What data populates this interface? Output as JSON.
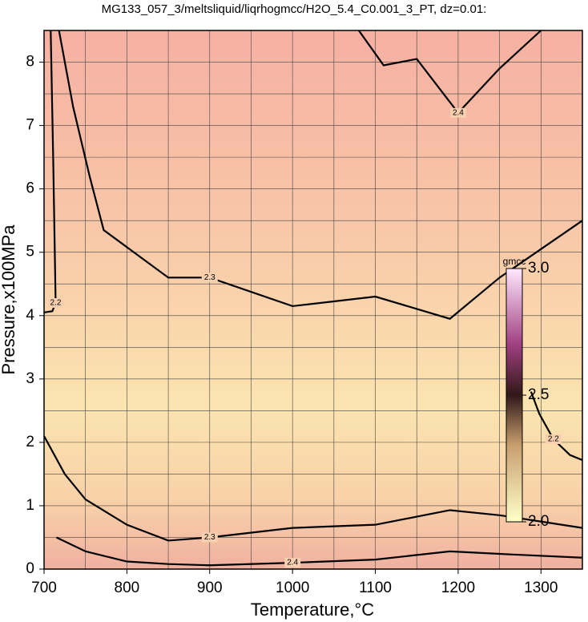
{
  "chart_data": {
    "type": "contour",
    "title": "MG133_057_3/meltsliquid/liqrhogmcc/H2O_5.4_C0.001_3_PT, dz=0.01:",
    "x_label": "Temperature,°C",
    "y_label": "Pressure,x100MPa",
    "xlim": [
      700,
      1350
    ],
    "ylim": [
      0,
      8.5
    ],
    "xticks": [
      700,
      800,
      900,
      1000,
      1100,
      1200,
      1300
    ],
    "yticks": [
      0,
      1,
      2,
      3,
      4,
      5,
      6,
      7,
      8
    ],
    "xgrid": [
      750,
      800,
      850,
      900,
      950,
      1000,
      1050,
      1100,
      1150,
      1200,
      1250,
      1300
    ],
    "ygrid": [
      0.5,
      1,
      1.5,
      2,
      2.5,
      3,
      3.5,
      4,
      4.5,
      5,
      5.5,
      6,
      6.5,
      7,
      7.5,
      8
    ],
    "grid": true,
    "contours": [
      {
        "level": 2.3,
        "x": [
          718,
          735,
          755,
          772,
          850,
          900,
          1000,
          1100,
          1190,
          1250,
          1350
        ],
        "y": [
          8.5,
          7.3,
          6.2,
          5.35,
          4.6,
          4.6,
          4.15,
          4.3,
          3.95,
          4.6,
          5.5
        ]
      },
      {
        "level": 2.4,
        "x": [
          1080,
          1110,
          1150,
          1200,
          1250,
          1300
        ],
        "y": [
          8.5,
          7.95,
          8.05,
          7.2,
          7.9,
          8.5
        ]
      },
      {
        "level": 2.3,
        "x": [
          700,
          725,
          750,
          800,
          850,
          900,
          1000,
          1100,
          1190,
          1250,
          1350
        ],
        "y": [
          2.1,
          1.5,
          1.1,
          0.7,
          0.45,
          0.5,
          0.65,
          0.7,
          0.93,
          0.85,
          0.65
        ]
      },
      {
        "level": 2.4,
        "x": [
          715,
          750,
          800,
          850,
          900,
          1000,
          1100,
          1190,
          1250,
          1350
        ],
        "y": [
          0.5,
          0.28,
          0.12,
          0.08,
          0.06,
          0.1,
          0.15,
          0.28,
          0.24,
          0.18
        ]
      },
      {
        "level": 2.2,
        "x": [
          1288,
          1298,
          1315,
          1335,
          1350
        ],
        "y": [
          2.8,
          2.45,
          2.05,
          1.8,
          1.72
        ]
      },
      {
        "level": 2.2,
        "x": [
          708,
          711,
          714,
          710,
          700
        ],
        "y": [
          8.5,
          6.5,
          4.2,
          4.07,
          4.05
        ]
      }
    ],
    "colorbar": {
      "label": "gmcc",
      "lim": [
        2.0,
        3.0
      ],
      "ticks": [
        {
          "value": 2.0,
          "label": "2.0"
        },
        2.5,
        {
          "value": 3.0,
          "label": "3.0"
        }
      ]
    }
  }
}
